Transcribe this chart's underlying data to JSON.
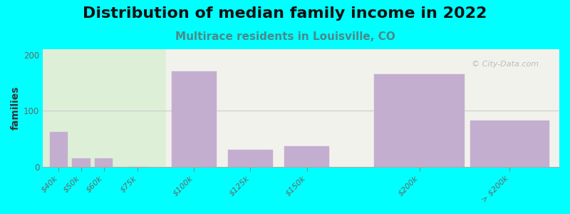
{
  "title": "Distribution of median family income in 2022",
  "subtitle": "Multirace residents in Louisville, CO",
  "ylabel": "families",
  "background_color": "#00FFFF",
  "plot_bg_left": "#deefd8",
  "plot_bg_right": "#f2f2ec",
  "bar_color": "#c4aed0",
  "watermark": "© City-Data.com",
  "categories": [
    "$40k",
    "$50k",
    "$60k",
    "$75k",
    "$100k",
    "$125k",
    "$150k",
    "$200k",
    "> $200k"
  ],
  "positions": [
    40,
    50,
    60,
    75,
    100,
    125,
    150,
    200,
    240
  ],
  "bar_widths": [
    8,
    8,
    8,
    8,
    20,
    20,
    20,
    40,
    35
  ],
  "values": [
    62,
    15,
    15,
    0,
    170,
    30,
    37,
    165,
    83
  ],
  "ylim": [
    0,
    210
  ],
  "yticks": [
    0,
    100,
    200
  ],
  "split_x": 87.5,
  "xmin": 33,
  "xmax": 262,
  "title_fontsize": 16,
  "subtitle_fontsize": 11,
  "subtitle_color": "#4a8a8a",
  "ylabel_fontsize": 10
}
